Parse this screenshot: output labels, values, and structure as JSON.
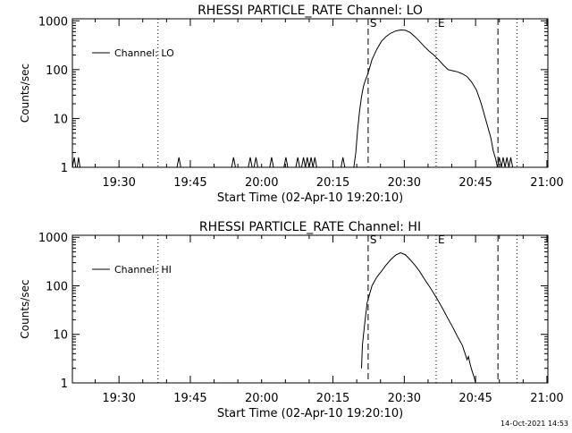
{
  "footer": {
    "timestamp": "14-Oct-2021 14:53"
  },
  "chart_data": [
    {
      "type": "line",
      "title": "RHESSI PARTICLE_RATE Channel: LO",
      "xlabel": "Start Time (02-Apr-10 19:20:10)",
      "ylabel": "Counts/sec",
      "x_unit": "minutes since 19:20:10",
      "xlim": [
        0,
        100
      ],
      "ylim": [
        1,
        1100
      ],
      "yscale": "log",
      "x_ticks": [
        {
          "x": 9.8,
          "label": "19:30"
        },
        {
          "x": 24.8,
          "label": "19:45"
        },
        {
          "x": 39.8,
          "label": "20:00"
        },
        {
          "x": 54.8,
          "label": "20:15"
        },
        {
          "x": 69.8,
          "label": "20:30"
        },
        {
          "x": 84.8,
          "label": "20:45"
        },
        {
          "x": 99.8,
          "label": "21:00"
        }
      ],
      "y_ticks": [
        {
          "y": 1,
          "label": "1"
        },
        {
          "y": 10,
          "label": "10"
        },
        {
          "y": 100,
          "label": "100"
        },
        {
          "y": 1000,
          "label": "1000"
        }
      ],
      "legend": {
        "label": "Channel: LO",
        "placement": "top-left"
      },
      "markers": [
        {
          "x": 18.0,
          "style": "dotted",
          "label": ""
        },
        {
          "x": 62.2,
          "style": "dashed",
          "label": "S"
        },
        {
          "x": 76.5,
          "style": "dotted",
          "label": "E"
        },
        {
          "x": 89.5,
          "style": "dashed",
          "label": ""
        },
        {
          "x": 93.5,
          "style": "dotted",
          "label": ""
        }
      ],
      "series": [
        {
          "name": "Channel: LO",
          "x": [
            0,
            0.4,
            0.7,
            1.0,
            1.3,
            1.6,
            1.9,
            2.2,
            22.0,
            22.4,
            22.8,
            33.5,
            33.9,
            34.3,
            37.0,
            37.4,
            37.8,
            38.2,
            38.6,
            39.0,
            41.5,
            41.9,
            42.3,
            44.5,
            44.9,
            45.3,
            47.0,
            47.4,
            47.8,
            48.2,
            48.6,
            49.0,
            49.4,
            49.8,
            50.2,
            50.6,
            51.0,
            51.4,
            51.8,
            56.5,
            56.9,
            57.3,
            59.2,
            59.6,
            60.0,
            60.4,
            60.8,
            61.2,
            61.6,
            62.0,
            62.4,
            63.0,
            64.0,
            65.0,
            66.0,
            67.0,
            68.0,
            69.0,
            70.0,
            71.0,
            72.0,
            73.0,
            74.0,
            75.0,
            76.0,
            77.0,
            78.0,
            79.0,
            80.0,
            81.0,
            82.0,
            83.0,
            84.0,
            85.0,
            86.0,
            87.0,
            88.0,
            88.5,
            89.0,
            89.4,
            89.8,
            90.2,
            90.6,
            91.0,
            91.4,
            91.8,
            92.2,
            92.6,
            93.0
          ],
          "y": [
            1,
            1.6,
            1,
            1,
            1.6,
            1,
            1,
            1,
            1,
            1.6,
            1,
            1,
            1.6,
            1,
            1,
            1.6,
            1,
            1,
            1.6,
            1,
            1,
            1.6,
            1,
            1,
            1.6,
            1,
            1,
            1.6,
            1,
            1,
            1.6,
            1,
            1.6,
            1,
            1.6,
            1,
            1.6,
            1,
            1,
            1,
            1.6,
            1,
            1,
            2,
            6,
            14,
            28,
            45,
            60,
            75,
            100,
            160,
            260,
            380,
            480,
            560,
            620,
            650,
            640,
            580,
            480,
            380,
            300,
            240,
            200,
            160,
            125,
            100,
            95,
            90,
            82,
            72,
            55,
            38,
            20,
            9,
            4,
            2.2,
            1.5,
            1,
            1.6,
            1,
            1.6,
            1,
            1.6,
            1,
            1.6,
            1,
            1
          ]
        }
      ]
    },
    {
      "type": "line",
      "title": "RHESSI PARTICLE_RATE Channel: HI",
      "xlabel": "Start Time (02-Apr-10 19:20:10)",
      "ylabel": "Counts/sec",
      "x_unit": "minutes since 19:20:10",
      "xlim": [
        0,
        100
      ],
      "ylim": [
        1,
        1100
      ],
      "yscale": "log",
      "x_ticks": [
        {
          "x": 9.8,
          "label": "19:30"
        },
        {
          "x": 24.8,
          "label": "19:45"
        },
        {
          "x": 39.8,
          "label": "20:00"
        },
        {
          "x": 54.8,
          "label": "20:15"
        },
        {
          "x": 69.8,
          "label": "20:30"
        },
        {
          "x": 84.8,
          "label": "20:45"
        },
        {
          "x": 99.8,
          "label": "21:00"
        }
      ],
      "y_ticks": [
        {
          "y": 1,
          "label": "1"
        },
        {
          "y": 10,
          "label": "10"
        },
        {
          "y": 100,
          "label": "100"
        },
        {
          "y": 1000,
          "label": "1000"
        }
      ],
      "legend": {
        "label": "Channel: HI",
        "placement": "top-left"
      },
      "markers": [
        {
          "x": 18.0,
          "style": "dotted",
          "label": ""
        },
        {
          "x": 62.2,
          "style": "dashed",
          "label": "S"
        },
        {
          "x": 76.5,
          "style": "dotted",
          "label": "E"
        },
        {
          "x": 89.5,
          "style": "dashed",
          "label": ""
        },
        {
          "x": 93.5,
          "style": "dotted",
          "label": ""
        }
      ],
      "series": [
        {
          "name": "Channel: HI",
          "x": [
            60.8,
            61.0,
            61.4,
            62.0,
            63.0,
            64.0,
            65.0,
            66.0,
            67.0,
            68.0,
            69.0,
            70.0,
            71.0,
            72.0,
            73.0,
            74.0,
            75.0,
            76.0,
            77.0,
            78.0,
            79.0,
            80.0,
            81.0,
            82.0,
            82.6,
            83.0,
            83.3,
            83.6,
            83.9,
            84.2,
            84.5,
            84.8
          ],
          "y": [
            2,
            6,
            14,
            45,
            100,
            150,
            200,
            270,
            350,
            430,
            480,
            440,
            350,
            270,
            200,
            140,
            100,
            70,
            48,
            32,
            21,
            14,
            9,
            6,
            4,
            3,
            3.5,
            2.5,
            2,
            1.6,
            1.3,
            1
          ]
        }
      ]
    }
  ]
}
